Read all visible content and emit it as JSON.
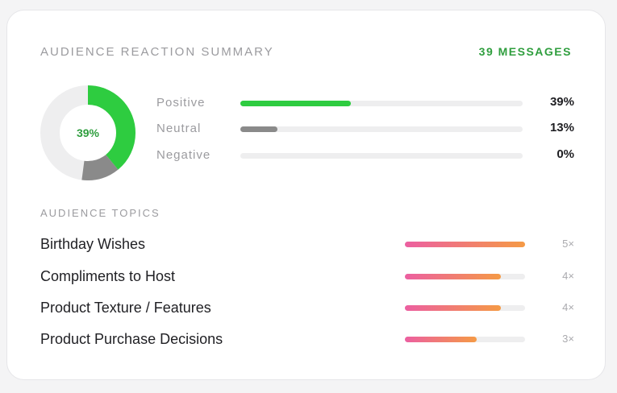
{
  "header": {
    "title": "AUDIENCE REACTION SUMMARY",
    "message_count": "39 MESSAGES"
  },
  "colors": {
    "positive": "#2ecc40",
    "neutral": "#8a8a8a",
    "negative": "#d9d9d9",
    "track": "#eeeeef",
    "accent_text": "#2f9e3e"
  },
  "donut": {
    "center_label": "39%",
    "segments": [
      {
        "name": "positive",
        "fraction": 0.39
      },
      {
        "name": "neutral",
        "fraction": 0.13
      },
      {
        "name": "negative",
        "fraction": 0.0
      }
    ]
  },
  "sentiment": [
    {
      "label": "Positive",
      "percent_label": "39%",
      "fraction": 0.39,
      "color": "#2ecc40"
    },
    {
      "label": "Neutral",
      "percent_label": "13%",
      "fraction": 0.13,
      "color": "#8a8a8a"
    },
    {
      "label": "Negative",
      "percent_label": "0%",
      "fraction": 0.0,
      "color": "#d9d9d9"
    }
  ],
  "topics": {
    "title": "AUDIENCE TOPICS",
    "items": [
      {
        "label": "Birthday Wishes",
        "count_label": "5×",
        "fraction": 1.0
      },
      {
        "label": "Compliments to Host",
        "count_label": "4×",
        "fraction": 0.8
      },
      {
        "label": "Product Texture / Features",
        "count_label": "4×",
        "fraction": 0.8
      },
      {
        "label": "Product Purchase Decisions",
        "count_label": "3×",
        "fraction": 0.6
      }
    ]
  }
}
